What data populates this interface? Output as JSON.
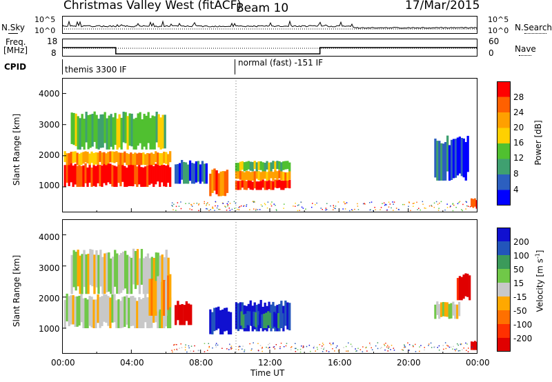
{
  "header": {
    "station": "Christmas Valley West (fitACF)",
    "beam": "Beam 10",
    "date": "17/Mar/2015"
  },
  "side_labels": {
    "nsky": "N.Sky",
    "nsearch": "N.Search",
    "freq": "Freq.",
    "mhz": "[MHz]",
    "nave": "Nave",
    "cpid": "CPID"
  },
  "noise_panel": {
    "left_ticks": [
      "10^5",
      "10^0"
    ],
    "right_ticks": [
      "10^5",
      "10^0"
    ]
  },
  "freq_panel": {
    "left_ticks": [
      "18",
      "8"
    ],
    "right_ticks": [
      "60",
      "0"
    ],
    "freq_steps": [
      {
        "t": 0.0,
        "f": 13.0
      },
      {
        "t": 3.1,
        "f": 9.5
      },
      {
        "t": 14.9,
        "f": 13.0
      },
      {
        "t": 24.0,
        "f": 13.0
      }
    ]
  },
  "cpid_panel": {
    "left_label": "themis 3300 IF",
    "right_label": "normal (fast) -151 IF"
  },
  "power_panel": {
    "ylabel": "Slant Range [km]",
    "yticks": [
      "1000",
      "2000",
      "3000",
      "4000"
    ],
    "colorbar_label": "Power [dB]",
    "colorbar_ticks": [
      "4",
      "8",
      "12",
      "16",
      "20",
      "24",
      "28"
    ]
  },
  "velocity_panel": {
    "ylabel": "Slant Range [km]",
    "yticks": [
      "1000",
      "2000",
      "3000",
      "4000"
    ],
    "colorbar_label": "Velocity [m s",
    "colorbar_unit_sup": "-1",
    "colorbar_unit_end": "]",
    "colorbar_ticks": [
      "200",
      "100",
      "50",
      "15",
      "-15",
      "-50",
      "-100",
      "-200"
    ]
  },
  "x_axis": {
    "ticks": [
      "00:00",
      "04:00",
      "08:00",
      "12:00",
      "16:00",
      "20:00",
      "00:00"
    ],
    "label": "Time UT"
  },
  "chart_data": {
    "type": "heatmap",
    "x_range_hours": [
      0,
      24
    ],
    "y_range_km": [
      180,
      4500
    ],
    "power_colors": [
      "#0000ff",
      "#2c5fbf",
      "#3fa070",
      "#50c030",
      "#ffd000",
      "#ffa000",
      "#ff6000",
      "#ff0000"
    ],
    "velocity_colors": [
      "#1010d0",
      "#2255bb",
      "#3b9a5a",
      "#70c848",
      "#c8c8c8",
      "#ffa800",
      "#ff7000",
      "#ff3000",
      "#e00000"
    ],
    "power_regions": [
      {
        "t0": 0.1,
        "t1": 6.3,
        "r0": 1000,
        "r1": 1700,
        "v": 7
      },
      {
        "t0": 0.1,
        "t1": 6.3,
        "r0": 1700,
        "r1": 2100,
        "v": 5
      },
      {
        "t0": 0.5,
        "t1": 6.0,
        "r0": 2200,
        "r1": 3300,
        "v": 3
      },
      {
        "t0": 8.5,
        "t1": 9.6,
        "r0": 700,
        "r1": 1500,
        "v": 6
      },
      {
        "t0": 10.0,
        "t1": 13.2,
        "r0": 900,
        "r1": 1200,
        "v": 7
      },
      {
        "t0": 10.0,
        "t1": 13.2,
        "r0": 1200,
        "r1": 1500,
        "v": 5
      },
      {
        "t0": 10.0,
        "t1": 13.2,
        "r0": 1500,
        "r1": 1800,
        "v": 3
      },
      {
        "t0": 6.5,
        "t1": 8.4,
        "r0": 1100,
        "r1": 1800,
        "v": 1
      },
      {
        "t0": 21.5,
        "t1": 23.5,
        "r0": 1200,
        "r1": 2500,
        "v": 1
      },
      {
        "t0": 23.6,
        "t1": 24.0,
        "r0": 300,
        "r1": 600,
        "v": 6
      }
    ],
    "velocity_regions": [
      {
        "t0": 0.1,
        "t1": 6.3,
        "r0": 1000,
        "r1": 2000,
        "v": 4
      },
      {
        "t0": 0.5,
        "t1": 6.2,
        "r0": 2100,
        "r1": 3400,
        "v": 4
      },
      {
        "t0": 5.0,
        "t1": 6.3,
        "r0": 1400,
        "r1": 2600,
        "v": 5
      },
      {
        "t0": 6.5,
        "t1": 7.5,
        "r0": 1100,
        "r1": 1800,
        "v": 8
      },
      {
        "t0": 8.5,
        "t1": 9.8,
        "r0": 800,
        "r1": 1600,
        "v": 0
      },
      {
        "t0": 10.0,
        "t1": 13.2,
        "r0": 900,
        "r1": 1800,
        "v": 0
      },
      {
        "t0": 10.3,
        "t1": 12.8,
        "r0": 1000,
        "r1": 1500,
        "v": 1
      },
      {
        "t0": 21.5,
        "t1": 23.0,
        "r0": 1300,
        "r1": 1800,
        "v": 4
      },
      {
        "t0": 22.8,
        "t1": 23.6,
        "r0": 1900,
        "r1": 2700,
        "v": 8
      },
      {
        "t0": 23.6,
        "t1": 24.0,
        "r0": 300,
        "r1": 600,
        "v": 8
      }
    ]
  }
}
